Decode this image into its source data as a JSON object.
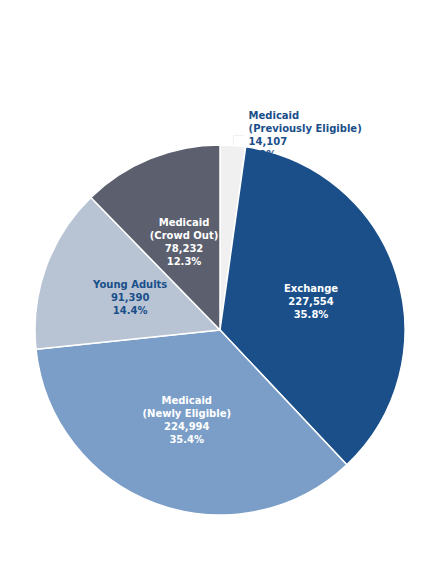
{
  "chart_data": {
    "type": "pie",
    "categories": [
      "Medicaid\n(Previously Eligible)",
      "Exchange",
      "Medicaid\n(Newly Eligible)",
      "Young Adults",
      "Medicaid\n(Crowd Out)"
    ],
    "values": [
      14107,
      227554,
      224994,
      91390,
      78232
    ],
    "value_labels": [
      "14,107",
      "227,554",
      "224,994",
      "91,390",
      "78,232"
    ],
    "percentages": [
      2.2,
      35.8,
      35.4,
      14.4,
      12.3
    ],
    "percentage_labels": [
      "2.2%",
      "35.8%",
      "35.4%",
      "14.4%",
      "12.3%"
    ],
    "colors": [
      "#f0f0f0",
      "#1a4f8a",
      "#7b9ec8",
      "#b8c4d4",
      "#5c606e"
    ]
  }
}
